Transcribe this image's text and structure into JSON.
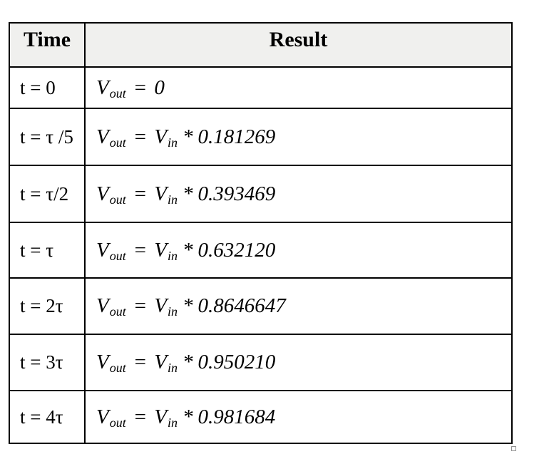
{
  "table": {
    "columns": [
      {
        "label": "Time"
      },
      {
        "label": "Result"
      }
    ],
    "rows": [
      {
        "time": "t = 0",
        "v_out": "V",
        "v_out_sub": "out",
        "eq": "=",
        "value": "0"
      },
      {
        "time": "t = τ /5",
        "v_out": "V",
        "v_out_sub": "out",
        "eq": "=",
        "v_in": "V",
        "v_in_sub": "in",
        "op": "*",
        "value": "0.181269"
      },
      {
        "time": "t = τ/2",
        "v_out": "V",
        "v_out_sub": "out",
        "eq": "=",
        "v_in": "V",
        "v_in_sub": "in",
        "op": "*",
        "value": "0.393469"
      },
      {
        "time": "t = τ",
        "v_out": "V",
        "v_out_sub": "out",
        "eq": "=",
        "v_in": "V",
        "v_in_sub": "in",
        "op": "*",
        "value": "0.632120"
      },
      {
        "time": "t = 2τ",
        "v_out": "V",
        "v_out_sub": "out",
        "eq": "=",
        "v_in": "V",
        "v_in_sub": "in",
        "op": "*",
        "value": "0.8646647"
      },
      {
        "time": "t = 3τ",
        "v_out": "V",
        "v_out_sub": "out",
        "eq": "=",
        "v_in": "V",
        "v_in_sub": "in",
        "op": "*",
        "value": "0.950210"
      },
      {
        "time": "t = 4τ",
        "v_out": "V",
        "v_out_sub": "out",
        "eq": "=",
        "v_in": "V",
        "v_in_sub": "in",
        "op": "*",
        "value": "0.981684"
      }
    ],
    "styles": {
      "header_bg": "#f0f0ee",
      "border_color": "#000000",
      "text_color": "#000000"
    }
  }
}
